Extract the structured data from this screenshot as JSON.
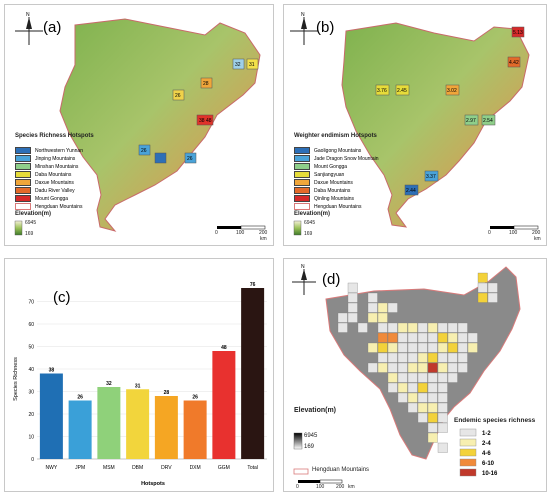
{
  "panels": {
    "a": {
      "label": "(a)",
      "legend_title": "Species Richness  Hotspots",
      "legend_items": [
        {
          "name": "Northwestern Yunnan",
          "color": "#2d6fb7"
        },
        {
          "name": "Jinping Mountains",
          "color": "#4aa3d9"
        },
        {
          "name": "Minshan Mountains",
          "color": "#8fcf8a"
        },
        {
          "name": "Daba Mountains",
          "color": "#e6dc3a"
        },
        {
          "name": "Daxue Mountains",
          "color": "#f0a63a"
        },
        {
          "name": "Dadu River Valley",
          "color": "#e36a2a"
        },
        {
          "name": "Mount Gongga",
          "color": "#d62a2a"
        },
        {
          "name": "Hengduan Mountains",
          "color": "#ffffff"
        }
      ],
      "elev_title": "Elevation(m)",
      "elev_high": "6945",
      "elev_low": "169",
      "map_labels": [
        "32",
        "31",
        "26",
        "28",
        "38",
        "48",
        "26",
        "26"
      ],
      "scale_ticks": [
        "0",
        "100",
        "200"
      ],
      "scale_unit": "km"
    },
    "b": {
      "label": "(b)",
      "legend_title": "Weighter endimism Hotspots",
      "legend_items": [
        {
          "name": "Gaoligong Mountains",
          "color": "#2d6fb7"
        },
        {
          "name": "Jade Dragon Snow Mountain",
          "color": "#4aa3d9"
        },
        {
          "name": "Mount Gongga",
          "color": "#8fcf8a"
        },
        {
          "name": "Sanjiangyuan",
          "color": "#e6dc3a"
        },
        {
          "name": "Daxue Mountains",
          "color": "#f0a63a"
        },
        {
          "name": "Daba Mountains",
          "color": "#e36a2a"
        },
        {
          "name": "Qinling Mountains",
          "color": "#d62a2a"
        },
        {
          "name": "Hengduan Mountains",
          "color": "#ffffff"
        }
      ],
      "elev_title": "Elevation(m)",
      "elev_high": "6945",
      "elev_low": "169",
      "map_labels": [
        "5.13",
        "4.42",
        "3.76",
        "2.45",
        "3.02",
        "2.97",
        "2.54",
        "3.37",
        "2.44"
      ],
      "scale_ticks": [
        "0",
        "100",
        "200"
      ],
      "scale_unit": "km"
    },
    "c": {
      "label": "(c)"
    },
    "d": {
      "label": "(d)",
      "legend_title": "Endemic species richness",
      "legend_items": [
        {
          "name": "1-2",
          "color": "#e6e6e6"
        },
        {
          "name": "2-4",
          "color": "#f7efb0"
        },
        {
          "name": "4-6",
          "color": "#f3d23a"
        },
        {
          "name": "6-10",
          "color": "#f08a3a"
        },
        {
          "name": "10-16",
          "color": "#c0392b"
        }
      ],
      "elev_title": "Elevation(m)",
      "elev_high": "6945",
      "elev_low": "169",
      "boundary_label": "Hengduan Mountains",
      "scale_ticks": [
        "0",
        "100",
        "200"
      ],
      "scale_unit": "km"
    }
  },
  "chart_data": {
    "type": "bar",
    "categories": [
      "NWY",
      "JPM",
      "MSM",
      "DBM",
      "DRV",
      "DXM",
      "GGM",
      "Total"
    ],
    "values": [
      38,
      26,
      32,
      31,
      28,
      26,
      48,
      76
    ],
    "colors": [
      "#1f6fb4",
      "#3aa0d8",
      "#8fd17a",
      "#f2d53c",
      "#f5a623",
      "#f07a2a",
      "#e8312f",
      "#2a1512"
    ],
    "xlabel": "Hotspots",
    "ylabel": "Species Richness",
    "ylim": [
      0,
      80
    ],
    "yticks": [
      "0",
      "10",
      "20",
      "30",
      "40",
      "50",
      "60",
      "70"
    ],
    "grid": true
  }
}
